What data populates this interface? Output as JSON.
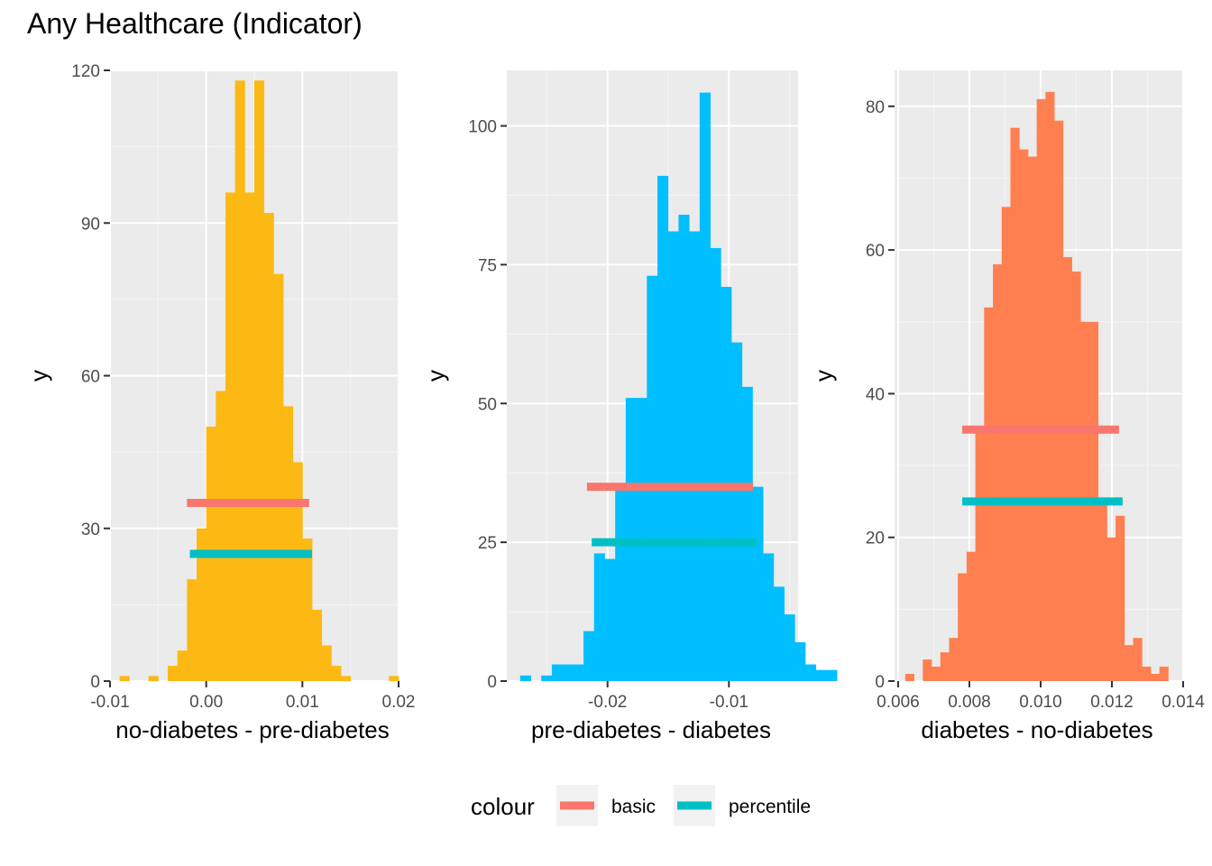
{
  "title": "Any Healthcare (Indicator)",
  "legend": {
    "title": "colour",
    "placement": "bottom",
    "items": [
      {
        "label": "basic",
        "color": "#F8766D"
      },
      {
        "label": "percentile",
        "color": "#00BFC4"
      }
    ]
  },
  "chart_data": [
    {
      "type": "bar",
      "subtype": "histogram",
      "xlabel": "no-diabetes - pre-diabetes",
      "ylabel": "y",
      "xlim": [
        -0.01,
        0.02
      ],
      "ylim": [
        0,
        120
      ],
      "xticks": [
        -0.01,
        0.0,
        0.01,
        0.02
      ],
      "xtick_labels": [
        "-0.01",
        "0.00",
        "0.01",
        "0.02"
      ],
      "yticks": [
        0,
        30,
        60,
        90,
        120
      ],
      "yticks_labels": [
        "0",
        "30",
        "60",
        "90",
        "120"
      ],
      "fill": "#FDB913",
      "bin_start": -0.009,
      "bin_width": 0.001,
      "counts": [
        1,
        0,
        0,
        1,
        0,
        3,
        6,
        20,
        30,
        50,
        57,
        96,
        118,
        96,
        118,
        92,
        80,
        54,
        43,
        28,
        14,
        7,
        3,
        1,
        0,
        0,
        0,
        0,
        1
      ],
      "segments": [
        {
          "name": "basic",
          "y": 35,
          "x_start": -0.002,
          "x_end": 0.0107
        },
        {
          "name": "percentile",
          "y": 25,
          "x_start": -0.0017,
          "x_end": 0.011
        }
      ]
    },
    {
      "type": "bar",
      "subtype": "histogram",
      "xlabel": "pre-diabetes - diabetes",
      "ylabel": "y",
      "xlim": [
        -0.0283,
        -0.0043
      ],
      "ylim": [
        0,
        110
      ],
      "xticks": [
        -0.02,
        -0.01
      ],
      "xtick_labels": [
        "-0.02",
        "-0.01"
      ],
      "yticks": [
        0,
        25,
        50,
        75,
        100
      ],
      "yticks_labels": [
        "0",
        "25",
        "50",
        "75",
        "100"
      ],
      "fill": "#00BFFF",
      "bin_start": -0.0272,
      "bin_width": 0.00087,
      "counts": [
        1,
        0,
        1,
        3,
        3,
        3,
        9,
        23,
        22,
        35,
        51,
        51,
        73,
        91,
        81,
        84,
        81,
        106,
        78,
        71,
        61,
        53,
        35,
        23,
        17,
        12,
        7,
        3,
        2,
        2
      ],
      "segments": [
        {
          "name": "basic",
          "y": 35,
          "x_start": -0.0217,
          "x_end": -0.008
        },
        {
          "name": "percentile",
          "y": 25,
          "x_start": -0.0213,
          "x_end": -0.0077
        }
      ]
    },
    {
      "type": "bar",
      "subtype": "histogram",
      "xlabel": "diabetes - no-diabetes",
      "ylabel": "y",
      "xlim": [
        0.0059,
        0.014
      ],
      "ylim": [
        0,
        85
      ],
      "xticks": [
        0.006,
        0.008,
        0.01,
        0.012,
        0.014
      ],
      "xtick_labels": [
        "0.006",
        "0.008",
        "0.010",
        "0.012",
        "0.014"
      ],
      "yticks": [
        0,
        20,
        40,
        60,
        80
      ],
      "yticks_labels": [
        "0",
        "20",
        "40",
        "60",
        "80"
      ],
      "fill": "#FF7F50",
      "bin_start": 0.0062,
      "bin_width": 0.000246,
      "counts": [
        1,
        0,
        3,
        2,
        4,
        6,
        15,
        18,
        35,
        52,
        58,
        66,
        77,
        74,
        73,
        81,
        82,
        78,
        59,
        57,
        50,
        50,
        25,
        20,
        23,
        5,
        6,
        2,
        1,
        2
      ],
      "segments": [
        {
          "name": "basic",
          "y": 35,
          "x_start": 0.0078,
          "x_end": 0.0122
        },
        {
          "name": "percentile",
          "y": 25,
          "x_start": 0.0078,
          "x_end": 0.0123
        }
      ]
    }
  ]
}
